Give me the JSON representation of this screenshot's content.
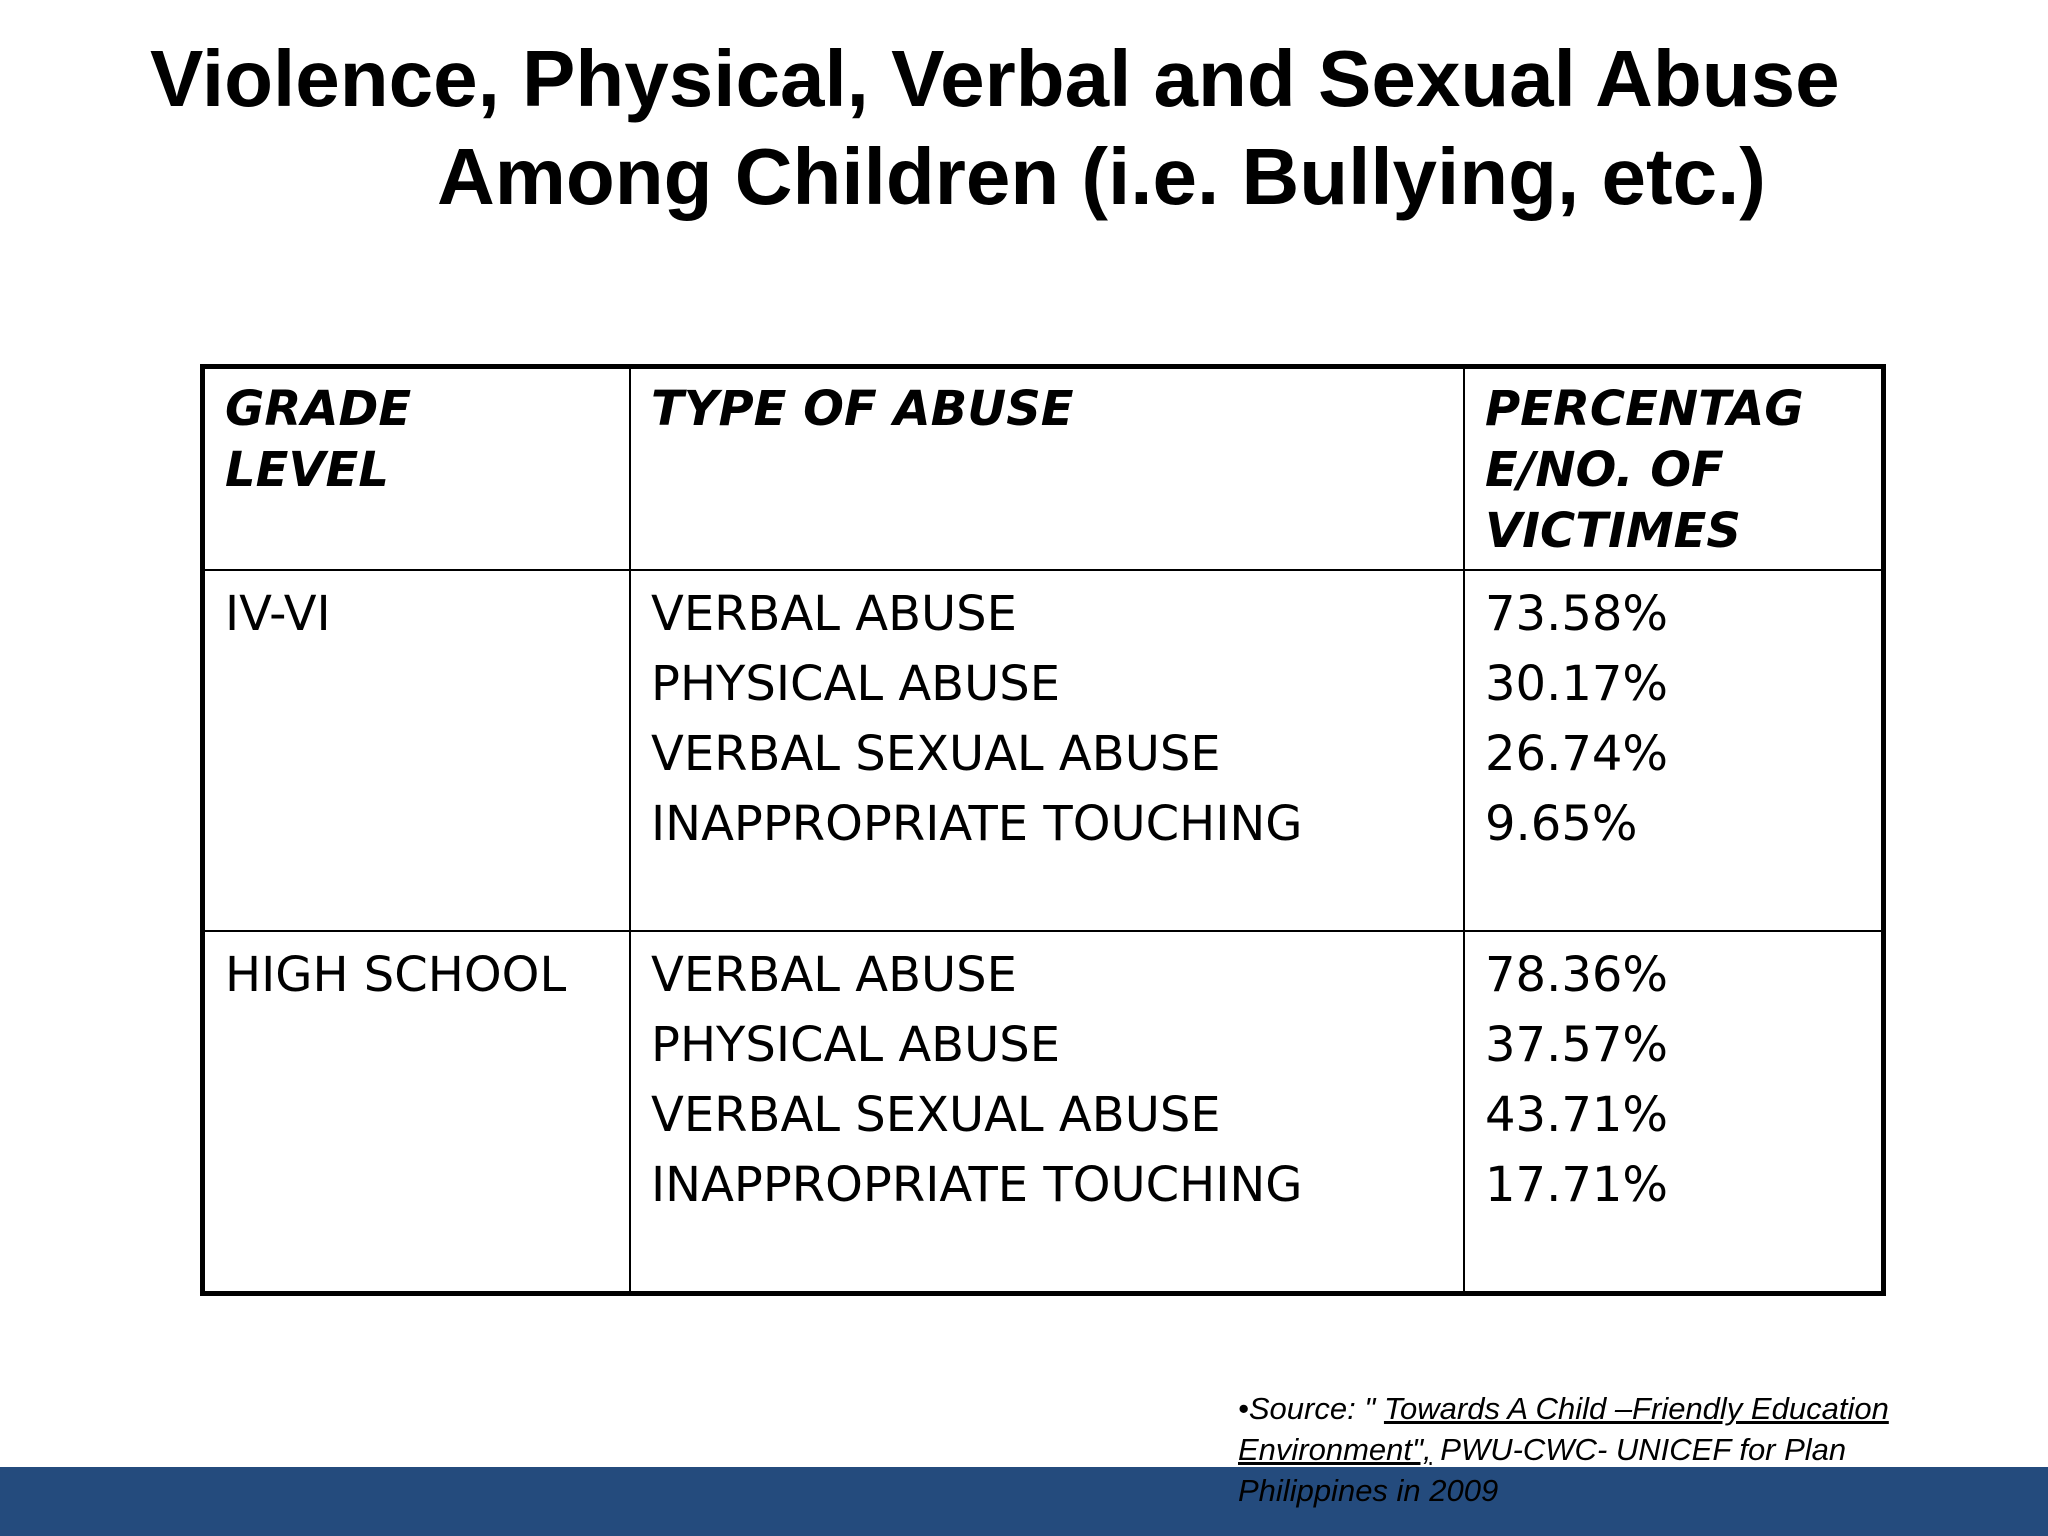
{
  "title": {
    "line1": "Violence, Physical, Verbal and Sexual Abuse",
    "line2": "Among Children (i.e. Bullying, etc.)"
  },
  "table": {
    "headers": {
      "grade_level": [
        "GRADE",
        "LEVEL"
      ],
      "type_of_abuse": "TYPE OF ABUSE",
      "percentage": [
        "PERCENTAG",
        "E/NO. OF",
        "VICTIMES"
      ]
    },
    "rows": [
      {
        "grade": "IV-VI",
        "items": [
          {
            "type": "VERBAL ABUSE",
            "value": "73.58%"
          },
          {
            "type": "PHYSICAL ABUSE",
            "value": "30.17%"
          },
          {
            "type": "VERBAL SEXUAL ABUSE",
            "value": "26.74%"
          },
          {
            "type": "INAPPROPRIATE TOUCHING",
            "value": "9.65%"
          }
        ]
      },
      {
        "grade": "HIGH SCHOOL",
        "items": [
          {
            "type": "VERBAL ABUSE",
            "value": "78.36%"
          },
          {
            "type": "PHYSICAL ABUSE",
            "value": "37.57%"
          },
          {
            "type": "VERBAL SEXUAL ABUSE",
            "value": "43.71%"
          },
          {
            "type": "INAPPROPRIATE TOUCHING",
            "value": "17.71%"
          }
        ]
      }
    ]
  },
  "source": {
    "bullet": "•",
    "prefix": "Source:  \" ",
    "title_underlined": "Towards A  Child –Friendly Education Environment\",",
    "rest": "  PWU-CWC- UNICEF for  Plan Philippines in 2009"
  },
  "colors": {
    "footer_bar": "#244b7d",
    "text": "#000000",
    "background": "#ffffff"
  }
}
